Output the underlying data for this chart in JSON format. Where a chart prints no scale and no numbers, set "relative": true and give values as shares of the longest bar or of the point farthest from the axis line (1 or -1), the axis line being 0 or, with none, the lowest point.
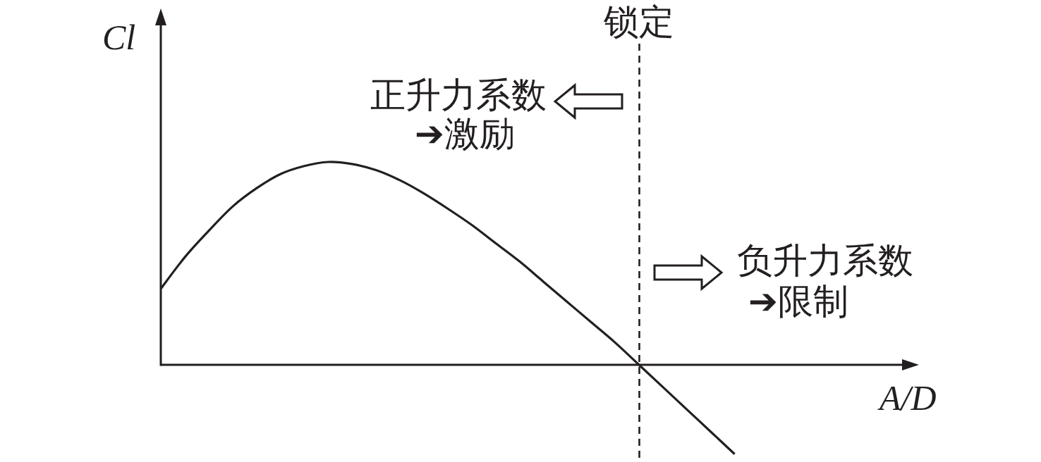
{
  "chart_data": {
    "type": "line",
    "relative": true,
    "xlabel": "A/D",
    "ylabel": "Cl",
    "categories": [
      null,
      null,
      null,
      null,
      null,
      null,
      null,
      null,
      null,
      null,
      null,
      null,
      null,
      null,
      null,
      null,
      null,
      null,
      null,
      null,
      null,
      null,
      null,
      null,
      null
    ],
    "series": [
      {
        "color": "#231f20",
        "values": [
          0.375,
          0.53,
          0.66,
          0.78,
          0.87,
          0.94,
          0.98,
          1.0,
          0.99,
          0.96,
          0.91,
          0.845,
          0.77,
          0.69,
          0.6,
          0.51,
          0.41,
          0.31,
          0.21,
          0.11,
          0.0,
          -0.11,
          -0.22,
          -0.33,
          -0.44
        ]
      }
    ],
    "annotations": [
      "锁定",
      "正升力系数\n➔激励",
      "负升力系数\n➔限制"
    ]
  }
}
